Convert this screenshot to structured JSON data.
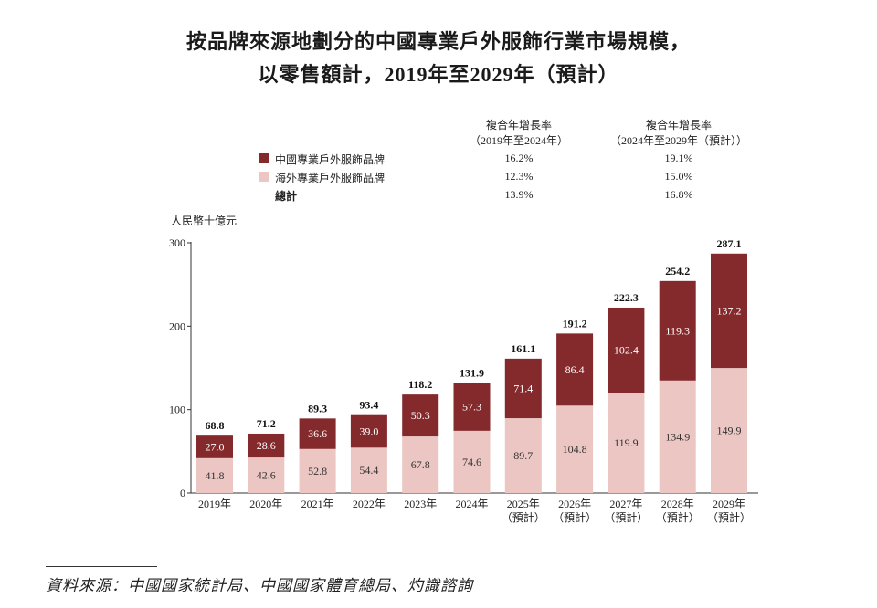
{
  "title": {
    "line1": "按品牌來源地劃分的中國專業戶外服飾行業市場規模，",
    "line2": "以零售額計，2019年至2029年（預計）"
  },
  "cagr_table": {
    "headers": [
      {
        "l1": "複合年增長率",
        "l2": "（2019年至2024年）"
      },
      {
        "l1": "複合年增長率",
        "l2": "（2024年至2029年（預計））"
      }
    ],
    "rows": [
      {
        "label": "中國專業戶外服飾品牌",
        "v1": "16.2%",
        "v2": "19.1%"
      },
      {
        "label": "海外專業戶外服飾品牌",
        "v1": "12.3%",
        "v2": "15.0%"
      },
      {
        "label": "總計",
        "v1": "13.9%",
        "v2": "16.8%"
      }
    ]
  },
  "colors": {
    "domestic": "#852a2c",
    "overseas": "#ebc6c2"
  },
  "chart_data": {
    "type": "bar",
    "stacked": true,
    "ylabel": "人民幣十億元",
    "ylim": [
      0,
      300
    ],
    "yticks": [
      "0",
      "100",
      "200",
      "300"
    ],
    "categories": [
      "2019年",
      "2020年",
      "2021年",
      "2022年",
      "2023年",
      "2024年",
      "2025年\n（預計）",
      "2026年\n（預計）",
      "2027年\n（預計）",
      "2028年\n（預計）",
      "2029年\n（預計）"
    ],
    "series": [
      {
        "name": "海外專業戶外服飾品牌",
        "values": [
          41.8,
          42.6,
          52.8,
          54.4,
          67.8,
          74.6,
          89.7,
          104.8,
          119.9,
          134.9,
          149.9
        ]
      },
      {
        "name": "中國專業戶外服飾品牌",
        "values": [
          27.0,
          28.6,
          36.6,
          39.0,
          50.3,
          57.3,
          71.4,
          86.4,
          102.4,
          119.3,
          137.2
        ]
      }
    ],
    "totals": [
      68.8,
      71.2,
      89.3,
      93.4,
      118.2,
      131.9,
      161.1,
      191.2,
      222.3,
      254.2,
      287.1
    ],
    "legend": "top",
    "grid": false
  },
  "source": "資料來源：中國國家統計局、中國國家體育總局、灼識諮詢"
}
